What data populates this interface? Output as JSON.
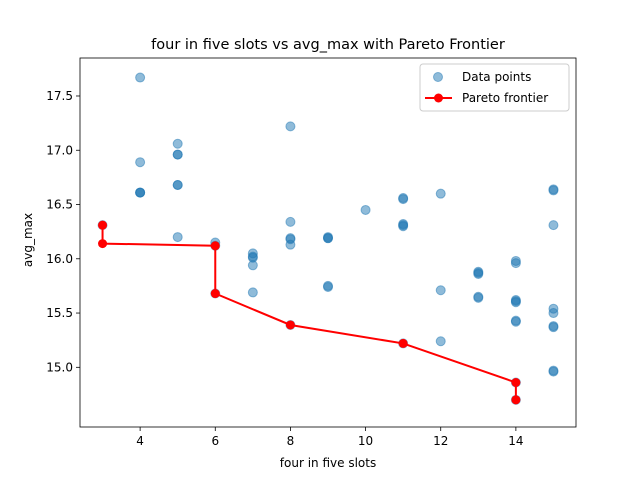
{
  "chart_data": {
    "type": "scatter",
    "title": "four in five slots vs avg_max with Pareto Frontier",
    "xlabel": "four in five slots",
    "ylabel": "avg_max",
    "xlim": [
      2.4,
      15.6
    ],
    "ylim": [
      14.45,
      17.85
    ],
    "xticks": [
      4,
      6,
      8,
      10,
      12,
      14
    ],
    "yticks": [
      15.0,
      15.5,
      16.0,
      16.5,
      17.0,
      17.5
    ],
    "xtick_labels": [
      "4",
      "6",
      "8",
      "10",
      "12",
      "14"
    ],
    "ytick_labels": [
      "15.0",
      "15.5",
      "16.0",
      "16.5",
      "17.0",
      "17.5"
    ],
    "legend_position": "top-right",
    "colors": {
      "points": "#1f77b4",
      "frontier": "#ff0000"
    },
    "series": [
      {
        "name": "Data points",
        "kind": "scatter",
        "points": [
          {
            "x": 3,
            "y": 16.31
          },
          {
            "x": 4,
            "y": 17.67
          },
          {
            "x": 4,
            "y": 16.89
          },
          {
            "x": 4,
            "y": 16.61
          },
          {
            "x": 4,
            "y": 16.61
          },
          {
            "x": 4,
            "y": 16.61
          },
          {
            "x": 5,
            "y": 17.06
          },
          {
            "x": 5,
            "y": 16.96
          },
          {
            "x": 5,
            "y": 16.96
          },
          {
            "x": 5,
            "y": 16.68
          },
          {
            "x": 5,
            "y": 16.68
          },
          {
            "x": 5,
            "y": 16.2
          },
          {
            "x": 6,
            "y": 16.15
          },
          {
            "x": 6,
            "y": 16.12
          },
          {
            "x": 6,
            "y": 15.68
          },
          {
            "x": 7,
            "y": 16.05
          },
          {
            "x": 7,
            "y": 16.02
          },
          {
            "x": 7,
            "y": 16.01
          },
          {
            "x": 7,
            "y": 15.94
          },
          {
            "x": 7,
            "y": 15.69
          },
          {
            "x": 8,
            "y": 17.22
          },
          {
            "x": 8,
            "y": 16.34
          },
          {
            "x": 8,
            "y": 16.19
          },
          {
            "x": 8,
            "y": 16.18
          },
          {
            "x": 8,
            "y": 16.13
          },
          {
            "x": 8,
            "y": 15.39
          },
          {
            "x": 9,
            "y": 16.2
          },
          {
            "x": 9,
            "y": 16.19
          },
          {
            "x": 9,
            "y": 16.19
          },
          {
            "x": 9,
            "y": 15.75
          },
          {
            "x": 9,
            "y": 15.74
          },
          {
            "x": 10,
            "y": 16.45
          },
          {
            "x": 11,
            "y": 16.56
          },
          {
            "x": 11,
            "y": 16.55
          },
          {
            "x": 11,
            "y": 16.32
          },
          {
            "x": 11,
            "y": 16.31
          },
          {
            "x": 11,
            "y": 16.3
          },
          {
            "x": 11,
            "y": 15.22
          },
          {
            "x": 12,
            "y": 16.6
          },
          {
            "x": 12,
            "y": 15.71
          },
          {
            "x": 12,
            "y": 15.24
          },
          {
            "x": 13,
            "y": 15.88
          },
          {
            "x": 13,
            "y": 15.87
          },
          {
            "x": 13,
            "y": 15.86
          },
          {
            "x": 13,
            "y": 15.65
          },
          {
            "x": 13,
            "y": 15.64
          },
          {
            "x": 14,
            "y": 15.98
          },
          {
            "x": 14,
            "y": 15.96
          },
          {
            "x": 14,
            "y": 15.62
          },
          {
            "x": 14,
            "y": 15.61
          },
          {
            "x": 14,
            "y": 15.6
          },
          {
            "x": 14,
            "y": 15.43
          },
          {
            "x": 14,
            "y": 15.42
          },
          {
            "x": 14,
            "y": 14.86
          },
          {
            "x": 14,
            "y": 14.7
          },
          {
            "x": 15,
            "y": 16.64
          },
          {
            "x": 15,
            "y": 16.63
          },
          {
            "x": 15,
            "y": 16.31
          },
          {
            "x": 15,
            "y": 15.54
          },
          {
            "x": 15,
            "y": 15.5
          },
          {
            "x": 15,
            "y": 15.38
          },
          {
            "x": 15,
            "y": 15.37
          },
          {
            "x": 15,
            "y": 14.97
          },
          {
            "x": 15,
            "y": 14.96
          }
        ]
      },
      {
        "name": "Pareto frontier",
        "kind": "line",
        "points": [
          {
            "x": 3,
            "y": 16.31
          },
          {
            "x": 3,
            "y": 16.14
          },
          {
            "x": 6,
            "y": 16.12
          },
          {
            "x": 6,
            "y": 15.68
          },
          {
            "x": 8,
            "y": 15.39
          },
          {
            "x": 11,
            "y": 15.22
          },
          {
            "x": 14,
            "y": 14.86
          },
          {
            "x": 14,
            "y": 14.7
          }
        ]
      }
    ]
  }
}
